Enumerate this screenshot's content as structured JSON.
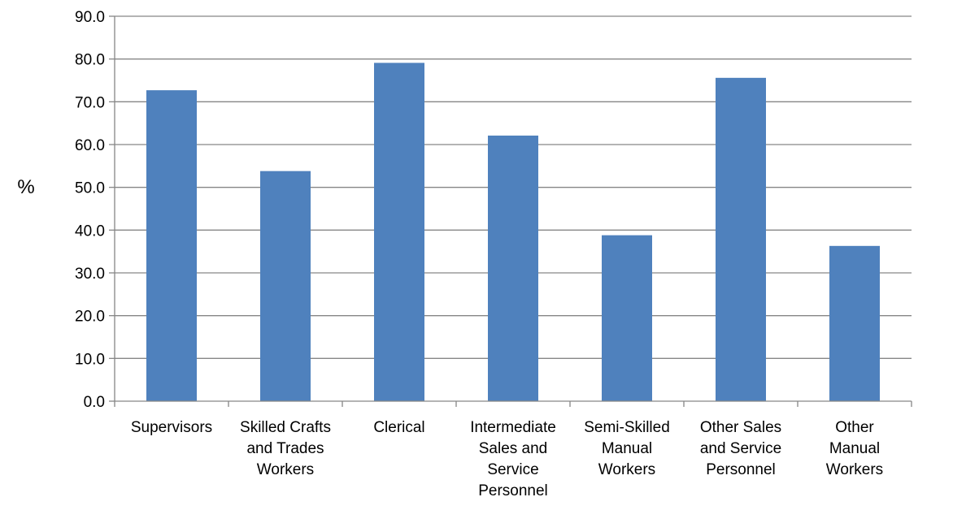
{
  "chart_data": {
    "type": "bar",
    "categories": [
      [
        "Supervisors"
      ],
      [
        "Skilled Crafts",
        "and Trades",
        "Workers"
      ],
      [
        "Clerical"
      ],
      [
        "Intermediate",
        "Sales and",
        "Service",
        "Personnel"
      ],
      [
        "Semi-Skilled",
        "Manual",
        "Workers"
      ],
      [
        "Other Sales",
        "and Service",
        "Personnel"
      ],
      [
        "Other",
        "Manual",
        "Workers"
      ]
    ],
    "values": [
      72.7,
      53.8,
      79.1,
      62.1,
      38.8,
      75.6,
      36.3
    ],
    "ylabel": "%",
    "ylim": [
      0,
      90
    ],
    "yticks": [
      "0.0",
      "10.0",
      "20.0",
      "30.0",
      "40.0",
      "50.0",
      "60.0",
      "70.0",
      "80.0",
      "90.0"
    ],
    "ytick_values": [
      0,
      10,
      20,
      30,
      40,
      50,
      60,
      70,
      80,
      90
    ],
    "grid": true,
    "legend": "none"
  },
  "colors": {
    "bar": "#4f81bd",
    "grid": "#868686",
    "axis": "#868686",
    "text": "#000000"
  }
}
